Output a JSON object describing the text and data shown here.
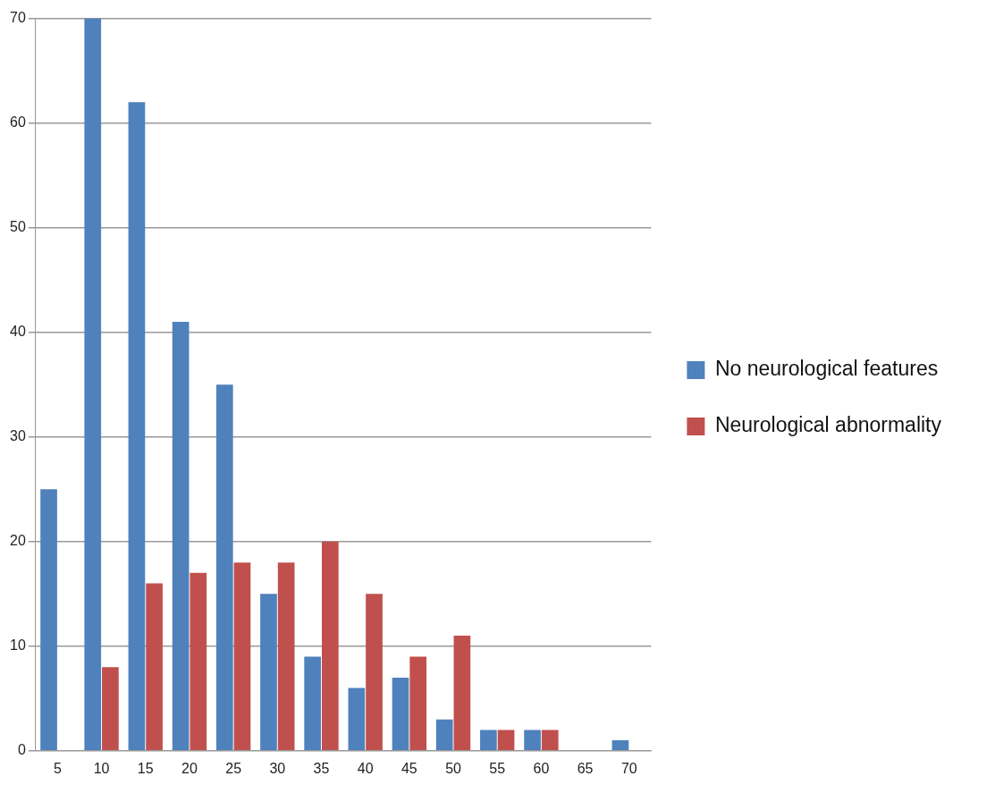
{
  "chart_data": {
    "type": "bar",
    "categories": [
      "5",
      "10",
      "15",
      "20",
      "25",
      "30",
      "35",
      "40",
      "45",
      "50",
      "55",
      "60",
      "65",
      "70"
    ],
    "series": [
      {
        "name": "No neurological features",
        "color": "#4f81bd",
        "values": [
          25,
          70,
          62,
          41,
          35,
          15,
          9,
          6,
          7,
          3,
          2,
          2,
          0,
          1
        ]
      },
      {
        "name": "Neurological abnormality",
        "color": "#c0504d",
        "values": [
          0,
          8,
          16,
          17,
          18,
          18,
          20,
          15,
          9,
          11,
          2,
          2,
          0,
          0
        ]
      }
    ],
    "ylim": [
      0,
      70
    ],
    "yticks": [
      0,
      10,
      20,
      30,
      40,
      50,
      60,
      70
    ],
    "grid": "y",
    "legend": "right"
  }
}
